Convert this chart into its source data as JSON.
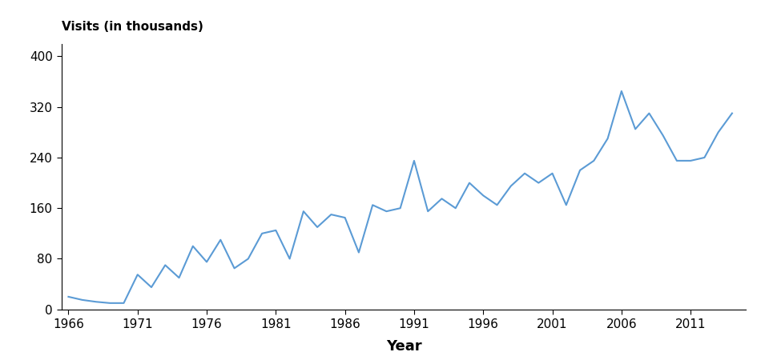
{
  "years": [
    1966,
    1967,
    1968,
    1969,
    1970,
    1971,
    1972,
    1973,
    1974,
    1975,
    1976,
    1977,
    1978,
    1979,
    1980,
    1981,
    1982,
    1983,
    1984,
    1985,
    1986,
    1987,
    1988,
    1989,
    1990,
    1991,
    1992,
    1993,
    1994,
    1995,
    1996,
    1997,
    1998,
    1999,
    2000,
    2001,
    2002,
    2003,
    2004,
    2005,
    2006,
    2007,
    2008,
    2009,
    2010,
    2011,
    2012,
    2013,
    2014
  ],
  "values": [
    20,
    15,
    12,
    10,
    10,
    55,
    35,
    70,
    50,
    100,
    75,
    110,
    65,
    80,
    120,
    125,
    80,
    155,
    130,
    150,
    145,
    90,
    165,
    155,
    160,
    235,
    155,
    175,
    160,
    200,
    180,
    165,
    195,
    215,
    200,
    215,
    165,
    220,
    235,
    270,
    345,
    285,
    310,
    275,
    235,
    235,
    240,
    280,
    310
  ],
  "line_color": "#5B9BD5",
  "line_width": 1.5,
  "ylabel": "Visits (in thousands)",
  "xlabel": "Year",
  "ylim": [
    0,
    420
  ],
  "yticks": [
    0,
    80,
    160,
    240,
    320,
    400
  ],
  "xticks": [
    1966,
    1971,
    1976,
    1981,
    1986,
    1991,
    1996,
    2001,
    2006,
    2011
  ],
  "xlim_left": 1965.5,
  "xlim_right": 2015,
  "background_color": "#ffffff",
  "ylabel_fontsize": 11,
  "xlabel_fontsize": 13,
  "tick_fontsize": 11
}
